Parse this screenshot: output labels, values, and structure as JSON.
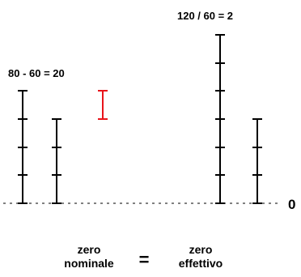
{
  "labels": {
    "left_equation": "80 - 60 = 20",
    "right_equation": "120 / 60 = 2",
    "zero": "0",
    "bottom_left_line1": "zero",
    "bottom_left_line2": "nominale",
    "equals": "=",
    "bottom_right_line1": "zero",
    "bottom_right_line2": "effettivo"
  },
  "colors": {
    "bar": "#000000",
    "difference_bar": "#e8141b",
    "baseline": "#000000"
  },
  "bars": [
    {
      "name": "left-bar-80",
      "height_units": 80,
      "group": "difference"
    },
    {
      "name": "left-bar-60",
      "height_units": 60,
      "group": "difference"
    },
    {
      "name": "difference-bar-20",
      "height_units": 20,
      "group": "difference",
      "highlight": true
    },
    {
      "name": "right-bar-120",
      "height_units": 120,
      "group": "ratio"
    },
    {
      "name": "right-bar-60",
      "height_units": 60,
      "group": "ratio"
    }
  ]
}
